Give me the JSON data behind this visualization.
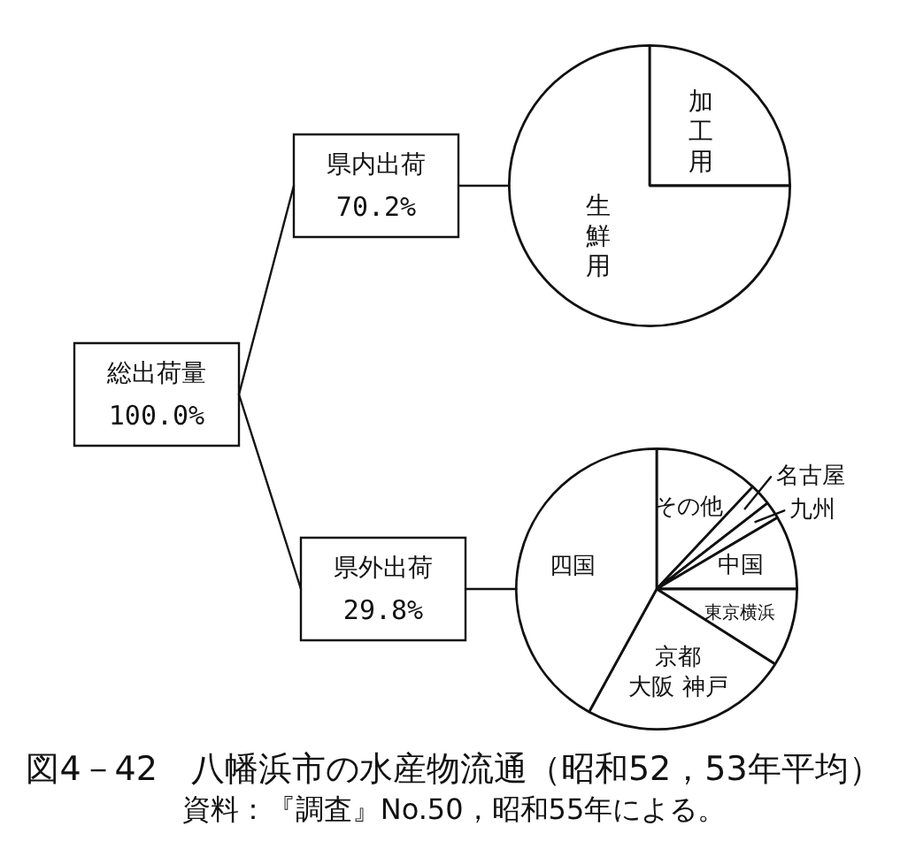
{
  "chart_data": [
    {
      "type": "other",
      "title": "総出荷量",
      "subtitle": "100.0%",
      "annotations": [
        "図4－42　八幡浜市の水産物流通（昭和52，53年平均）",
        "資料：『調査』No.50，昭和55年による。"
      ]
    },
    {
      "type": "pie",
      "title": "県内出荷",
      "subtitle": "70.2%",
      "categories": [
        "加工用",
        "生鮮用"
      ],
      "values": [
        25,
        75
      ],
      "colors": [
        "#ffffff",
        "#ffffff"
      ]
    },
    {
      "type": "pie",
      "title": "県外出荷",
      "subtitle": "29.8%",
      "categories": [
        "その他",
        "名古屋",
        "九州",
        "中国",
        "東京横浜",
        "京都大阪 神戸",
        "四国"
      ],
      "values": [
        12,
        2.5,
        2,
        8.5,
        9,
        24,
        42
      ],
      "colors": [
        "#ffffff",
        "#ffffff",
        "#ffffff",
        "#ffffff",
        "#ffffff",
        "#ffffff",
        "#ffffff"
      ]
    }
  ]
}
